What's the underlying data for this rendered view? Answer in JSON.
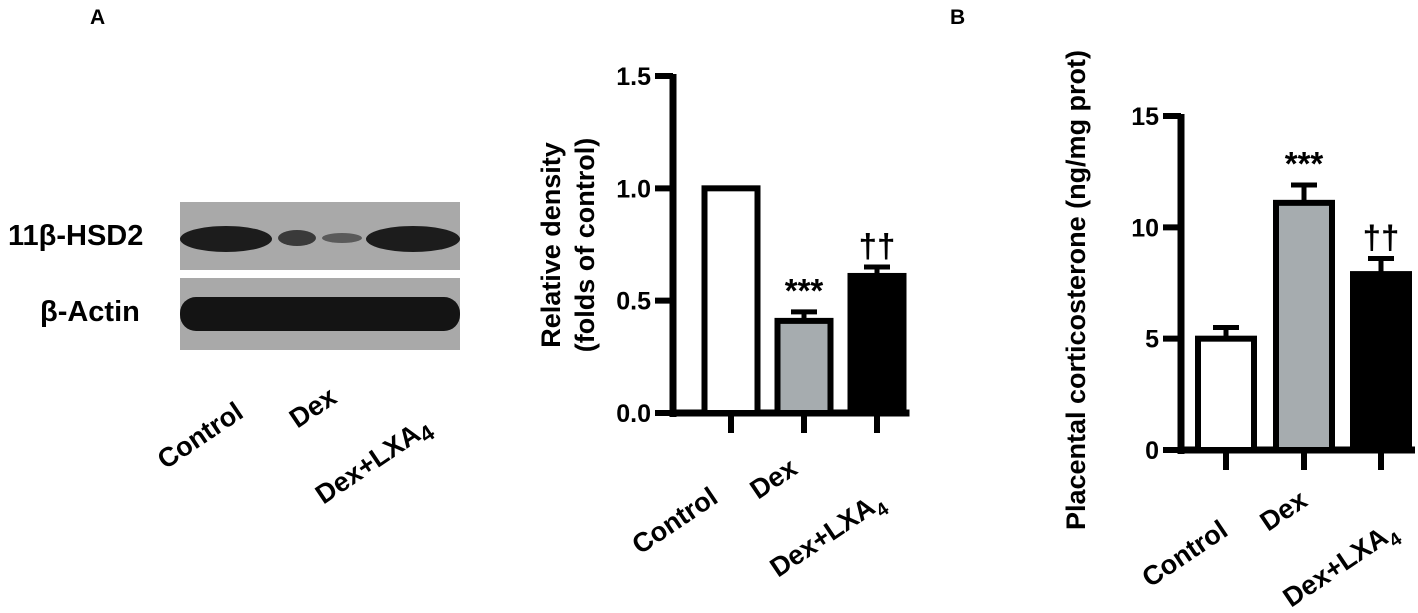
{
  "panels": {
    "a": "A",
    "b": "B"
  },
  "blot": {
    "band_labels": [
      "11β-HSD2",
      "β-Actin"
    ],
    "lanes": [
      {
        "main": "Control",
        "sub": ""
      },
      {
        "main": "Dex",
        "sub": ""
      },
      {
        "main": "Dex+LXA",
        "sub": "4"
      }
    ]
  },
  "chart_data": [
    {
      "type": "bar",
      "categories": [
        {
          "main": "Control",
          "sub": ""
        },
        {
          "main": "Dex",
          "sub": ""
        },
        {
          "main": "Dex+LXA",
          "sub": "4"
        }
      ],
      "values": [
        1.0,
        0.41,
        0.61
      ],
      "errors": [
        0.0,
        0.04,
        0.04
      ],
      "annotations": [
        "",
        "***",
        "††"
      ],
      "bar_colors": [
        "#ffffff",
        "#a6acaf",
        "#000000"
      ],
      "ylabel_lines": [
        "Relative density",
        "(folds of control)"
      ],
      "ylim": [
        0,
        1.5
      ],
      "yticks": [
        0.0,
        0.5,
        1.0,
        1.5
      ],
      "ytick_labels": [
        "0.0",
        "0.5",
        "1.0",
        "1.5"
      ]
    },
    {
      "type": "bar",
      "categories": [
        {
          "main": "Control",
          "sub": ""
        },
        {
          "main": "Dex",
          "sub": ""
        },
        {
          "main": "Dex+LXA",
          "sub": "4"
        }
      ],
      "values": [
        5.0,
        11.1,
        7.9
      ],
      "errors": [
        0.5,
        0.8,
        0.7
      ],
      "annotations": [
        "",
        "***",
        "††"
      ],
      "bar_colors": [
        "#ffffff",
        "#a6acaf",
        "#000000"
      ],
      "ylabel_lines": [
        "Placental corticosterone (ng/mg prot)"
      ],
      "ylim": [
        0,
        15
      ],
      "yticks": [
        0,
        5,
        10,
        15
      ],
      "ytick_labels": [
        "0",
        "5",
        "10",
        "15"
      ]
    }
  ]
}
